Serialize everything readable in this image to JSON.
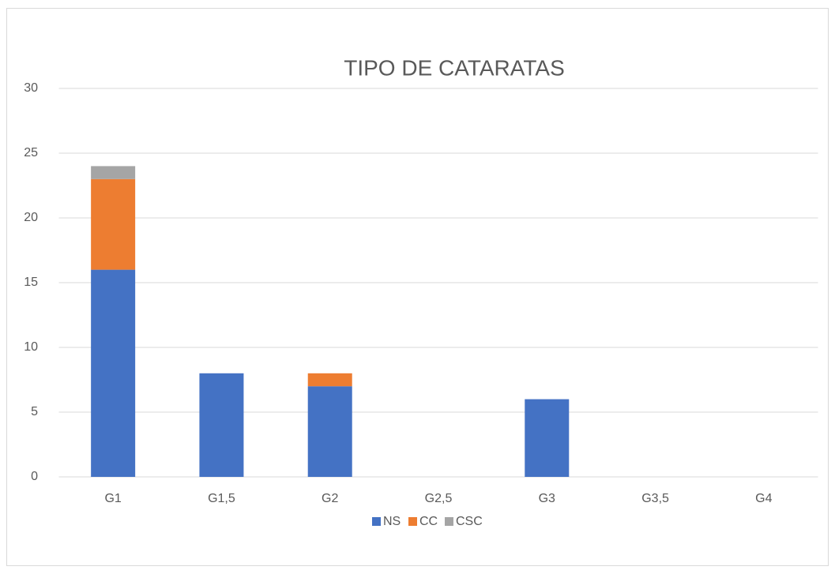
{
  "chart_data": {
    "type": "stacked_bar",
    "title": "TIPO DE CATARATAS",
    "categories": [
      "G1",
      "G1,5",
      "G2",
      "G2,5",
      "G3",
      "G3,5",
      "G4"
    ],
    "series": [
      {
        "name": "NS",
        "color": "#4472c4",
        "values": [
          16,
          8,
          7,
          0,
          6,
          0,
          0
        ]
      },
      {
        "name": "CC",
        "color": "#ed7d31",
        "values": [
          7,
          0,
          1,
          0,
          0,
          0,
          0
        ]
      },
      {
        "name": "CSC",
        "color": "#a5a5a5",
        "values": [
          1,
          0,
          0,
          0,
          0,
          0,
          0
        ]
      }
    ],
    "ylim": [
      0,
      30
    ],
    "yticks": [
      0,
      5,
      10,
      15,
      20,
      25,
      30
    ],
    "grid": true,
    "legend": "bottom"
  }
}
